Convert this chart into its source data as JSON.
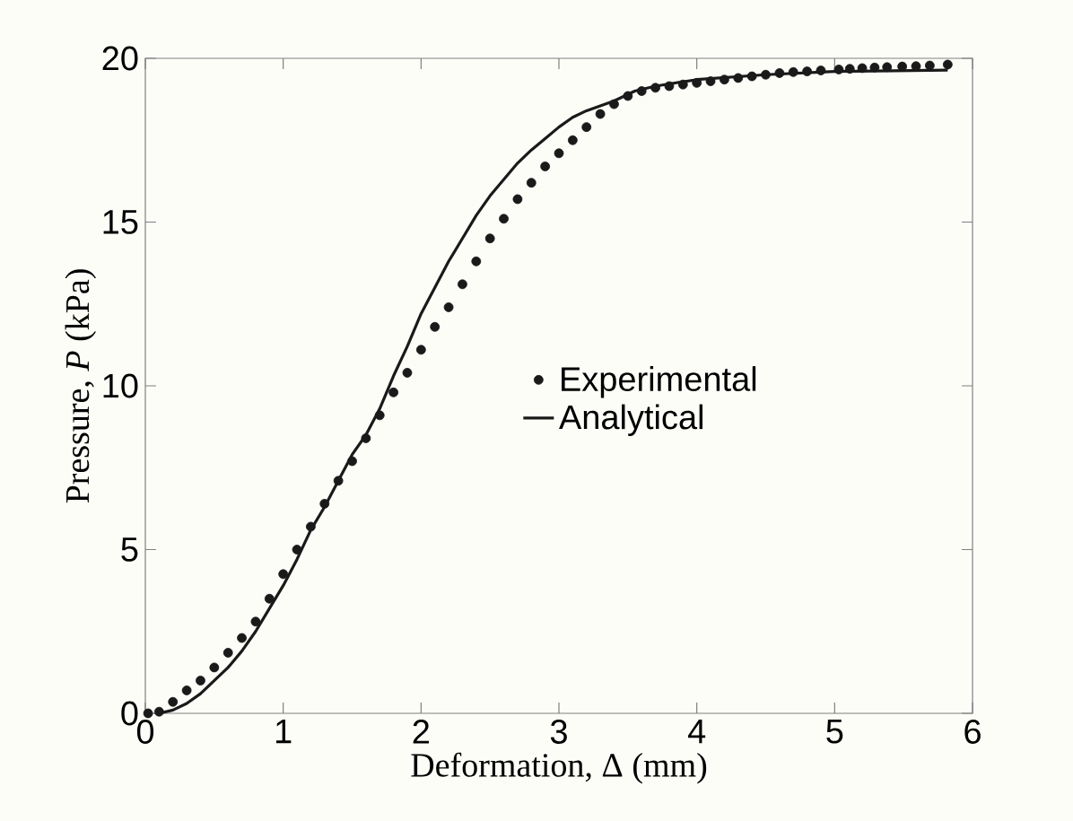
{
  "chart_data": {
    "type": "scatter",
    "xlabel": "Deformation, Δ (mm)",
    "ylabel": "Pressure, *P* (kPa)",
    "xlim": [
      0,
      6
    ],
    "ylim": [
      0,
      20
    ],
    "xticks": [
      0,
      1,
      2,
      3,
      4,
      5,
      6
    ],
    "yticks": [
      0,
      5,
      10,
      15,
      20
    ],
    "legend": "center",
    "series": [
      {
        "name": "Experimental",
        "marker": "circle",
        "color": "#1a1a1a",
        "x": [
          0.02,
          0.1,
          0.2,
          0.3,
          0.4,
          0.5,
          0.6,
          0.7,
          0.8,
          0.9,
          1.0,
          1.1,
          1.2,
          1.3,
          1.4,
          1.5,
          1.6,
          1.7,
          1.8,
          1.9,
          2.0,
          2.1,
          2.2,
          2.3,
          2.4,
          2.5,
          2.6,
          2.7,
          2.8,
          2.9,
          3.0,
          3.1,
          3.2,
          3.3,
          3.4,
          3.5,
          3.6,
          3.7,
          3.8,
          3.9,
          4.0,
          4.1,
          4.2,
          4.3,
          4.4,
          4.5,
          4.6,
          4.7,
          4.8,
          4.9,
          5.03,
          5.11,
          5.2,
          5.29,
          5.38,
          5.49,
          5.59,
          5.69,
          5.82
        ],
        "values": [
          0,
          0.05,
          0.35,
          0.7,
          1.0,
          1.4,
          1.85,
          2.3,
          2.8,
          3.5,
          4.25,
          5.0,
          5.7,
          6.4,
          7.1,
          7.7,
          8.4,
          9.1,
          9.8,
          10.4,
          11.1,
          11.8,
          12.4,
          13.1,
          13.8,
          14.5,
          15.1,
          15.7,
          16.2,
          16.7,
          17.1,
          17.5,
          17.9,
          18.3,
          18.6,
          18.85,
          19.0,
          19.1,
          19.15,
          19.2,
          19.25,
          19.3,
          19.35,
          19.4,
          19.45,
          19.5,
          19.55,
          19.58,
          19.6,
          19.63,
          19.66,
          19.68,
          19.7,
          19.72,
          19.73,
          19.75,
          19.76,
          19.78,
          19.81
        ]
      },
      {
        "name": "Analytical",
        "type": "line",
        "marker": "none",
        "line_style": "solid",
        "color": "#1a1a1a",
        "x": [
          0.1,
          0.2,
          0.3,
          0.4,
          0.5,
          0.6,
          0.7,
          0.8,
          0.9,
          1.0,
          1.1,
          1.2,
          1.3,
          1.4,
          1.5,
          1.6,
          1.7,
          1.8,
          1.9,
          2.0,
          2.1,
          2.2,
          2.3,
          2.4,
          2.5,
          2.6,
          2.7,
          2.8,
          2.9,
          3.0,
          3.1,
          3.2,
          3.4,
          3.55,
          3.7,
          4.0,
          4.5,
          5.0,
          5.82
        ],
        "values": [
          0,
          0.1,
          0.3,
          0.6,
          1.0,
          1.4,
          1.9,
          2.5,
          3.2,
          3.9,
          4.7,
          5.6,
          6.3,
          7.1,
          7.9,
          8.5,
          9.3,
          10.3,
          11.2,
          12.2,
          13.0,
          13.8,
          14.5,
          15.2,
          15.8,
          16.3,
          16.8,
          17.2,
          17.55,
          17.9,
          18.2,
          18.4,
          18.7,
          19.0,
          19.15,
          19.35,
          19.5,
          19.6,
          19.64
        ]
      }
    ]
  }
}
